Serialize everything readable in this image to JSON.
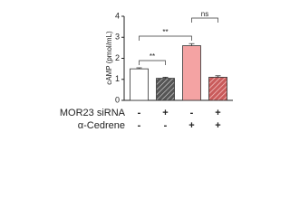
{
  "chart_data": {
    "type": "bar",
    "ylabel": "cAMP (pmol/mL)",
    "values": [
      1.5,
      1.05,
      2.6,
      1.1
    ],
    "errors": [
      0.05,
      0.05,
      0.1,
      0.07
    ],
    "colors": [
      "#ffffff",
      "#555555",
      "#f4a3a3",
      "#f4a3a3"
    ],
    "hatch": [
      false,
      true,
      false,
      true
    ],
    "ylim": [
      0,
      4
    ],
    "yticks": [
      0,
      1,
      2,
      3,
      4
    ],
    "annotations": [
      "**",
      "**",
      "ns"
    ],
    "rows": [
      {
        "label": "MOR23 siRNA",
        "signs": [
          "-",
          "+",
          "-",
          "+"
        ]
      },
      {
        "label": "α-Cedrene",
        "signs": [
          "-",
          "-",
          "+",
          "+"
        ]
      }
    ]
  }
}
